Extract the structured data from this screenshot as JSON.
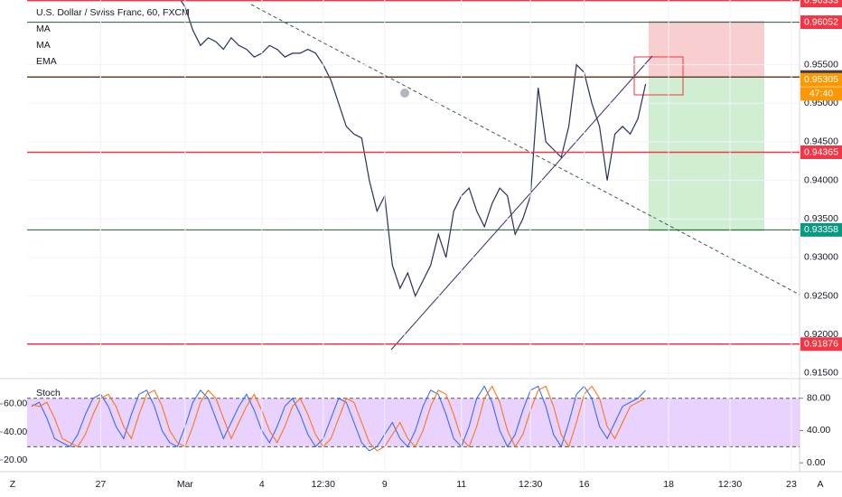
{
  "chart_data": [
    {
      "type": "line",
      "title": "U.S. Dollar / Swiss Franc, 60, FXCM",
      "indicators": [
        "MA",
        "MA",
        "EMA"
      ],
      "color": "#26325a",
      "categories": [
        null,
        null,
        null,
        null,
        null,
        null,
        null,
        null,
        null,
        "27",
        null,
        null,
        null,
        null,
        null,
        null,
        null,
        null,
        null,
        null,
        "Mar",
        null,
        null,
        null,
        null,
        null,
        null,
        null,
        null,
        null,
        "4",
        null,
        null,
        null,
        null,
        null,
        null,
        null,
        "12:30",
        null,
        null,
        null,
        null,
        null,
        null,
        null,
        "9",
        null,
        null,
        null,
        null,
        null,
        null,
        null,
        null,
        null,
        "11",
        null,
        null,
        null,
        null,
        null,
        null,
        null,
        null,
        "12:30",
        null,
        null,
        null,
        null,
        null,
        null,
        "16",
        null,
        null,
        null,
        null,
        null,
        null,
        null,
        null,
        null,
        null,
        "18",
        null,
        null,
        null,
        null,
        null,
        null,
        null,
        "12:30",
        null,
        null,
        null,
        null,
        null,
        null,
        null,
        "23"
      ],
      "values": [
        null,
        null,
        null,
        null,
        null,
        null,
        null,
        null,
        null,
        null,
        null,
        null,
        null,
        null,
        null,
        null,
        null,
        null,
        null,
        0.964,
        0.9625,
        0.9595,
        0.9575,
        0.9585,
        0.958,
        0.957,
        0.9585,
        0.9575,
        0.957,
        0.956,
        0.9565,
        0.9575,
        0.957,
        0.956,
        0.9565,
        0.9565,
        0.957,
        0.9565,
        0.955,
        0.953,
        0.95,
        0.947,
        0.946,
        0.9455,
        0.94,
        0.936,
        0.938,
        0.929,
        0.926,
        0.928,
        0.925,
        0.927,
        0.929,
        0.933,
        0.93,
        0.936,
        0.938,
        0.939,
        0.936,
        0.934,
        0.937,
        0.939,
        0.938,
        0.933,
        0.935,
        0.938,
        0.952,
        0.945,
        0.944,
        0.943,
        0.947,
        0.955,
        0.954,
        0.95,
        0.947,
        0.94,
        0.946,
        0.947,
        0.946,
        0.948,
        0.9525,
        null,
        null,
        null,
        null,
        null,
        null,
        null,
        null,
        null,
        null,
        null,
        null,
        null,
        null,
        null,
        null,
        null,
        null,
        null
      ],
      "ylim": [
        0.9144,
        0.9634
      ],
      "yticks": [
        {
          "value": 0.915,
          "label": "0.91500"
        },
        {
          "value": 0.92,
          "label": "0.92000"
        },
        {
          "value": 0.925,
          "label": "0.92500"
        },
        {
          "value": 0.93,
          "label": "0.93000"
        },
        {
          "value": 0.935,
          "label": "0.93500"
        },
        {
          "value": 0.94,
          "label": "0.94000"
        },
        {
          "value": 0.945,
          "label": "0.94500"
        },
        {
          "value": 0.95,
          "label": "0.95000"
        },
        {
          "value": 0.955,
          "label": "0.95500"
        }
      ],
      "grid": true,
      "levels": [
        {
          "value": 0.96333,
          "color": "#f23645",
          "line": "#f23645"
        },
        {
          "value": 0.96052,
          "color": "#f23645",
          "line": "#1e5e3a"
        },
        {
          "value": 0.95342,
          "color": "#f23645",
          "line": "#f23645"
        },
        {
          "value": 0.95338,
          "color": "#3a3f4b",
          "line": "#1e5e3a"
        },
        {
          "value": 0.95305,
          "color": "#ff9800"
        },
        {
          "value": 0.94365,
          "color": "#f23645",
          "line": "#f23645"
        },
        {
          "value": 0.93358,
          "color": "#089981",
          "line": "#1e5e3a"
        },
        {
          "value": 0.91876,
          "color": "#f23645",
          "line": "#f23645"
        }
      ],
      "countdown": "47:40"
    },
    {
      "type": "stoch",
      "title": "Stoch",
      "series": [
        {
          "color": "#2962ff",
          "values": [
            70,
            75,
            55,
            30,
            25,
            20,
            35,
            60,
            80,
            85,
            70,
            45,
            30,
            60,
            85,
            90,
            70,
            40,
            25,
            20,
            45,
            75,
            90,
            80,
            55,
            30,
            50,
            70,
            85,
            65,
            40,
            25,
            45,
            70,
            80,
            60,
            35,
            20,
            30,
            55,
            80,
            75,
            50,
            25,
            15,
            20,
            35,
            50,
            30,
            20,
            40,
            70,
            90,
            85,
            60,
            30,
            20,
            45,
            80,
            95,
            75,
            40,
            20,
            35,
            65,
            90,
            95,
            70,
            35,
            20,
            50,
            85,
            95,
            80,
            45,
            30,
            50,
            70,
            75,
            80,
            90,
            null,
            null,
            null,
            null,
            null,
            null,
            null,
            null,
            null,
            null,
            null,
            null,
            null,
            null,
            null,
            null,
            null,
            null,
            null
          ]
        },
        {
          "color": "#ff6d00",
          "values": [
            72,
            70,
            75,
            55,
            30,
            25,
            20,
            35,
            60,
            80,
            85,
            70,
            45,
            30,
            60,
            85,
            90,
            70,
            40,
            25,
            20,
            45,
            75,
            90,
            80,
            55,
            30,
            50,
            70,
            85,
            65,
            40,
            25,
            45,
            70,
            80,
            60,
            35,
            20,
            30,
            55,
            80,
            75,
            50,
            25,
            15,
            20,
            35,
            50,
            30,
            20,
            40,
            70,
            90,
            85,
            60,
            30,
            20,
            45,
            80,
            95,
            75,
            40,
            20,
            35,
            65,
            90,
            95,
            70,
            35,
            20,
            50,
            85,
            95,
            80,
            45,
            30,
            50,
            70,
            75,
            80,
            null,
            null,
            null,
            null,
            null,
            null,
            null,
            null,
            null,
            null,
            null,
            null,
            null,
            null,
            null,
            null,
            null,
            null,
            null
          ]
        }
      ],
      "band": [
        20,
        80
      ],
      "band_color": "#e1bfff",
      "ylim": [
        -11,
        101
      ],
      "yticks": [
        {
          "value": 80,
          "label": "80.00"
        },
        {
          "value": 40,
          "label": "40.00"
        },
        {
          "value": 0,
          "label": "0.00"
        }
      ],
      "y2lim": [
        11.6,
        76.1
      ],
      "y2ticks": [
        {
          "value": 60,
          "label": "60.00"
        },
        {
          "value": 40,
          "label": "40.00"
        },
        {
          "value": 20,
          "label": "20.00"
        }
      ]
    },
    {
      "type": "buttons",
      "left": "Z",
      "right": "A"
    }
  ]
}
